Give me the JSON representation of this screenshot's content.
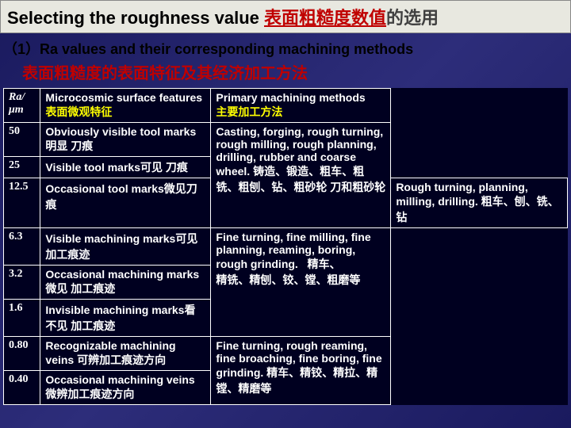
{
  "title": {
    "en": "Selecting the roughness value",
    "cn_red": "表面粗糙度数值",
    "cn_blue": "的选用"
  },
  "subtitle": {
    "num": "（1）",
    "en": "Ra values and their corresponding machining methods",
    "cn": "表面粗糙度的表面特征及其经济加工方法"
  },
  "headers": {
    "ra": "Ra/μm",
    "features_en": "Microcosmic surface features",
    "features_cn": "表面微观特征",
    "methods_en": "Primary machining methods",
    "methods_cn": "主要加工方法"
  },
  "rows": [
    {
      "ra": "50",
      "feat": "Obviously visible tool marks明显 刀痕",
      "method": "Casting, forging, rough turning, rough milling, rough planning, drilling, rubber and coarse wheel. 铸造、锻造、粗车、粗铣、粗刨、钻、粗砂轮 刀和粗砂轮",
      "span": 3
    },
    {
      "ra": "25",
      "feat": "Visible tool marks可见 刀痕"
    },
    {
      "ra": "12.5",
      "feat": "Occasional tool marks微见刀痕",
      "method": "Rough turning, planning, milling, drilling. 粗车、刨、铣、钻",
      "span": 1
    },
    {
      "ra": "6.3",
      "feat": "Visible machining marks可见加工痕迹",
      "method": "Fine turning, fine milling, fine planning, reaming, boring, rough grinding.   精车、\n精铣、精刨、铰、镗、粗磨等",
      "span": 3
    },
    {
      "ra": "3.2",
      "feat": "Occasional machining marks微见 加工痕迹"
    },
    {
      "ra": "1.6",
      "feat": "Invisible machining marks看不见 加工痕迹"
    },
    {
      "ra": "0.80",
      "feat": "Recognizable machining veins 可辨加工痕迹方向",
      "method": "Fine turning, rough reaming, fine broaching, fine boring, fine grinding. 精车、精铰、精拉、精镗、精磨等",
      "span": 2
    },
    {
      "ra": "0.40",
      "feat": "Occasional machining veins微辨加工痕迹方向"
    }
  ]
}
